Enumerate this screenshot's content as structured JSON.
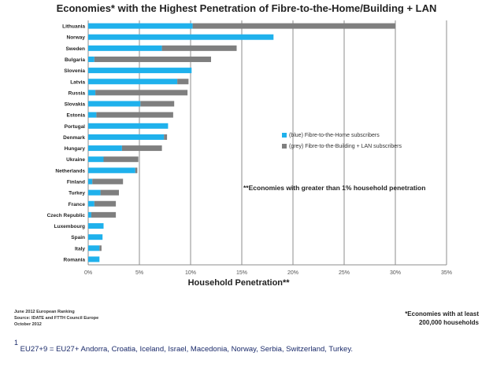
{
  "chart_data": {
    "type": "bar",
    "orientation": "horizontal",
    "stacked": true,
    "title": "Economies* with the Highest Penetration of Fibre-to-the-Home/Building + LAN",
    "xlabel": "Household Penetration**",
    "ylabel": "",
    "xlim": [
      0,
      35
    ],
    "xticks": [
      "0%",
      "5%",
      "10%",
      "15%",
      "20%",
      "25%",
      "30%",
      "35%"
    ],
    "grid": "vertical",
    "legend_placement": "right",
    "annotation": "**Economies with greater than 1% household penetration",
    "categories": [
      "Lithuania",
      "Norway",
      "Sweden",
      "Bulgaria",
      "Slovenia",
      "Latvia",
      "Russia",
      "Slovakia",
      "Estonia",
      "Portugal",
      "Denmark",
      "Hungary",
      "Ukraine",
      "Netherlands",
      "Finland",
      "Turkey",
      "France",
      "Czech Republic",
      "Luxembourg",
      "Spain",
      "Italy",
      "Romania"
    ],
    "series": [
      {
        "name": "(blue) Fibre-to-the-Home subscribers",
        "color": "#1fb1ec",
        "values": [
          10.2,
          18.1,
          7.2,
          0.6,
          10.1,
          8.7,
          0.7,
          5.1,
          0.8,
          7.8,
          7.4,
          3.3,
          1.5,
          4.6,
          0.4,
          1.2,
          0.6,
          0.3,
          1.5,
          1.4,
          1.1,
          1.1
        ]
      },
      {
        "name": "(grey) Fibre-to-the-Building + LAN subscribers",
        "color": "#7f7f7f",
        "values": [
          19.8,
          0,
          7.3,
          11.4,
          0,
          1.1,
          9.0,
          3.3,
          7.5,
          0,
          0.3,
          3.9,
          3.4,
          0.2,
          3.0,
          1.8,
          2.1,
          2.4,
          0,
          0,
          0.2,
          0
        ]
      }
    ]
  },
  "source": {
    "line1": "June 2012 European Ranking",
    "line2": "Source: IDATE and FTTH Council Europe",
    "line3": "October 2012"
  },
  "note": {
    "line1": "*Economies with at least",
    "line2": "200,000 households"
  },
  "footnote": {
    "marker": "1",
    "text": "EU27+9 = EU27+ Andorra, Croatia, Iceland, Israel, Macedonia, Norway, Serbia, Switzerland, Turkey."
  }
}
